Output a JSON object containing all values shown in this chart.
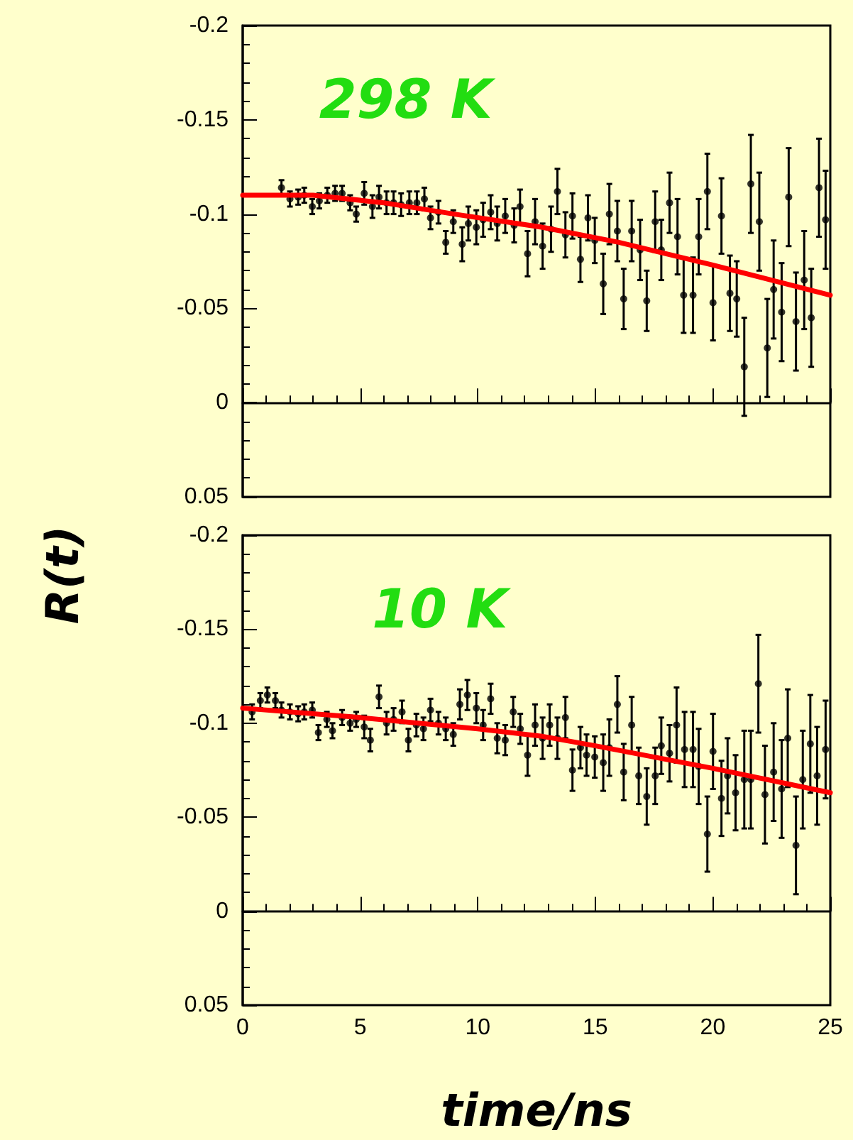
{
  "chart_data": [
    {
      "type": "scatter",
      "ylabel": "R(t)",
      "annotations": [
        "298 K"
      ],
      "tick_labels": "y",
      "xlim": [
        0,
        25
      ],
      "xticks": [
        0,
        5,
        10,
        15,
        20,
        25
      ],
      "ylim": [
        0.05,
        -0.2
      ],
      "yticks": [
        -0.2,
        -0.15,
        -0.1,
        -0.05,
        0,
        0.05
      ],
      "series": [
        {
          "color": "#000000",
          "marker": "circle",
          "x": [
            1.65,
            2.01,
            2.36,
            2.62,
            2.96,
            3.26,
            3.6,
            3.93,
            4.23,
            4.57,
            4.83,
            5.17,
            5.52,
            5.8,
            6.12,
            6.42,
            6.74,
            7.09,
            7.41,
            7.73,
            7.99,
            8.33,
            8.64,
            8.96,
            9.34,
            9.6,
            9.94,
            10.23,
            10.55,
            10.83,
            11.17,
            11.55,
            11.8,
            12.12,
            12.44,
            12.76,
            13.12,
            13.39,
            13.73,
            14.03,
            14.37,
            14.69,
            14.98,
            15.34,
            15.6,
            15.94,
            16.21,
            16.55,
            16.91,
            17.19,
            17.55,
            17.81,
            18.16,
            18.5,
            18.76,
            19.16,
            19.4,
            19.77,
            20.01,
            20.37,
            20.73,
            21.02,
            21.34,
            21.62,
            21.98,
            22.32,
            22.59,
            22.93,
            23.23,
            23.54,
            23.89,
            24.19,
            24.52,
            24.8
          ],
          "values": [
            -0.114,
            -0.108,
            -0.109,
            -0.11,
            -0.104,
            -0.107,
            -0.11,
            -0.111,
            -0.111,
            -0.106,
            -0.1,
            -0.111,
            -0.104,
            -0.109,
            -0.106,
            -0.106,
            -0.105,
            -0.106,
            -0.106,
            -0.108,
            -0.098,
            -0.101,
            -0.085,
            -0.096,
            -0.084,
            -0.095,
            -0.093,
            -0.097,
            -0.101,
            -0.095,
            -0.099,
            -0.094,
            -0.104,
            -0.079,
            -0.096,
            -0.083,
            -0.092,
            -0.112,
            -0.089,
            -0.099,
            -0.076,
            -0.098,
            -0.086,
            -0.063,
            -0.1,
            -0.091,
            -0.055,
            -0.091,
            -0.081,
            -0.054,
            -0.096,
            -0.081,
            -0.106,
            -0.088,
            -0.057,
            -0.057,
            -0.088,
            -0.112,
            -0.053,
            -0.099,
            -0.058,
            -0.055,
            -0.019,
            -0.116,
            -0.096,
            -0.029,
            -0.06,
            -0.048,
            -0.109,
            -0.043,
            -0.065,
            -0.045,
            -0.114,
            -0.097
          ],
          "errors": [
            0.004,
            0.004,
            0.004,
            0.004,
            0.004,
            0.004,
            0.004,
            0.004,
            0.004,
            0.004,
            0.004,
            0.006,
            0.006,
            0.006,
            0.006,
            0.006,
            0.006,
            0.006,
            0.006,
            0.006,
            0.006,
            0.006,
            0.006,
            0.006,
            0.009,
            0.009,
            0.009,
            0.009,
            0.009,
            0.009,
            0.009,
            0.009,
            0.009,
            0.012,
            0.012,
            0.012,
            0.012,
            0.012,
            0.012,
            0.012,
            0.012,
            0.012,
            0.012,
            0.016,
            0.016,
            0.016,
            0.016,
            0.016,
            0.016,
            0.016,
            0.016,
            0.016,
            0.016,
            0.02,
            0.02,
            0.02,
            0.02,
            0.02,
            0.02,
            0.02,
            0.02,
            0.02,
            0.026,
            0.026,
            0.026,
            0.026,
            0.026,
            0.026,
            0.026,
            0.026,
            0.026,
            0.026,
            0.026,
            0.026
          ]
        },
        {
          "type": "line",
          "color": "#ff0000",
          "marker": "none",
          "line_style": "solid",
          "x": [
            0,
            3,
            6,
            9,
            12.76,
            16,
            20,
            25
          ],
          "values": [
            -0.11,
            -0.11,
            -0.106,
            -0.1,
            -0.093,
            -0.085,
            -0.073,
            -0.057
          ]
        }
      ]
    },
    {
      "type": "scatter",
      "xlabel": "time/ns",
      "annotations": [
        "10 K"
      ],
      "xlim": [
        0,
        25
      ],
      "xticks": [
        0,
        5,
        10,
        15,
        20,
        25
      ],
      "ylim": [
        0.05,
        -0.2
      ],
      "yticks": [
        -0.2,
        -0.15,
        -0.1,
        -0.05,
        0,
        0.05
      ],
      "series": [
        {
          "color": "#000000",
          "marker": "circle",
          "x": [
            0.4,
            0.75,
            1.05,
            1.39,
            1.65,
            2.01,
            2.36,
            2.62,
            2.96,
            3.22,
            3.58,
            3.82,
            4.23,
            4.57,
            4.83,
            5.17,
            5.43,
            5.8,
            6.12,
            6.42,
            6.78,
            7.05,
            7.39,
            7.69,
            7.99,
            8.33,
            8.64,
            8.96,
            9.24,
            9.56,
            9.94,
            10.23,
            10.55,
            10.83,
            11.17,
            11.51,
            11.81,
            12.12,
            12.44,
            12.76,
            13.06,
            13.39,
            13.73,
            14.03,
            14.37,
            14.63,
            14.98,
            15.34,
            15.6,
            15.94,
            16.21,
            16.55,
            16.85,
            17.19,
            17.55,
            17.81,
            18.16,
            18.46,
            18.8,
            19.16,
            19.4,
            19.77,
            20.01,
            20.37,
            20.63,
            20.97,
            21.34,
            21.62,
            21.94,
            22.22,
            22.59,
            22.93,
            23.19,
            23.54,
            23.83,
            24.15,
            24.44,
            24.8
          ],
          "values": [
            -0.106,
            -0.112,
            -0.115,
            -0.112,
            -0.107,
            -0.106,
            -0.105,
            -0.106,
            -0.107,
            -0.095,
            -0.102,
            -0.096,
            -0.103,
            -0.1,
            -0.102,
            -0.098,
            -0.091,
            -0.114,
            -0.1,
            -0.102,
            -0.106,
            -0.091,
            -0.099,
            -0.097,
            -0.107,
            -0.1,
            -0.097,
            -0.094,
            -0.11,
            -0.115,
            -0.108,
            -0.099,
            -0.113,
            -0.092,
            -0.091,
            -0.106,
            -0.097,
            -0.083,
            -0.099,
            -0.092,
            -0.099,
            -0.092,
            -0.103,
            -0.075,
            -0.087,
            -0.083,
            -0.082,
            -0.079,
            -0.087,
            -0.11,
            -0.074,
            -0.099,
            -0.072,
            -0.061,
            -0.072,
            -0.088,
            -0.084,
            -0.099,
            -0.086,
            -0.086,
            -0.077,
            -0.041,
            -0.085,
            -0.06,
            -0.072,
            -0.063,
            -0.07,
            -0.07,
            -0.121,
            -0.062,
            -0.074,
            -0.065,
            -0.092,
            -0.035,
            -0.07,
            -0.089,
            -0.072,
            -0.086
          ],
          "errors": [
            0.004,
            0.004,
            0.004,
            0.004,
            0.004,
            0.004,
            0.004,
            0.004,
            0.004,
            0.004,
            0.004,
            0.004,
            0.004,
            0.004,
            0.004,
            0.006,
            0.006,
            0.006,
            0.006,
            0.006,
            0.006,
            0.006,
            0.006,
            0.006,
            0.006,
            0.006,
            0.006,
            0.006,
            0.008,
            0.008,
            0.008,
            0.008,
            0.008,
            0.008,
            0.008,
            0.008,
            0.008,
            0.011,
            0.011,
            0.011,
            0.011,
            0.011,
            0.011,
            0.011,
            0.011,
            0.011,
            0.011,
            0.015,
            0.015,
            0.015,
            0.015,
            0.015,
            0.015,
            0.015,
            0.015,
            0.015,
            0.015,
            0.02,
            0.02,
            0.02,
            0.02,
            0.02,
            0.02,
            0.02,
            0.02,
            0.02,
            0.026,
            0.026,
            0.026,
            0.026,
            0.026,
            0.026,
            0.026,
            0.026,
            0.026,
            0.026,
            0.026,
            0.026
          ]
        },
        {
          "type": "line",
          "color": "#ff0000",
          "marker": "none",
          "line_style": "solid",
          "x": [
            0,
            5,
            10,
            12.76,
            15,
            20,
            25
          ],
          "values": [
            -0.108,
            -0.103,
            -0.097,
            -0.093,
            -0.088,
            -0.076,
            -0.063
          ]
        }
      ]
    }
  ]
}
